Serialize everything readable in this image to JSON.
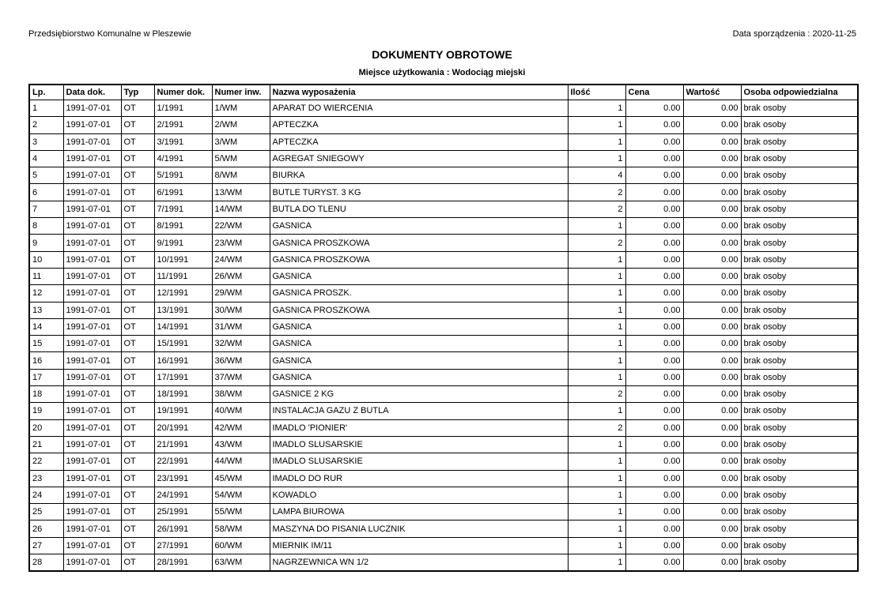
{
  "header": {
    "company": "Przedsiębiorstwo Komunalne w Pleszewie",
    "date": "Data sporządzenia : 2020-11-25",
    "title": "DOKUMENTY OBROTOWE",
    "subtitle": "Miejsce użytkowania : Wodociąg miejski"
  },
  "table": {
    "columns": [
      "Lp.",
      "Data dok.",
      "Typ",
      "Numer dok.",
      "Numer inw.",
      "Nazwa wyposażenia",
      "Ilość",
      "Cena",
      "Wartość",
      "Osoba odpowiedzialna"
    ],
    "rows": [
      [
        1,
        "1991-07-01",
        "OT",
        "1/1991",
        "1/WM",
        "APARAT DO WIERCENIA",
        1,
        "0.00",
        "0.00",
        "brak osoby"
      ],
      [
        2,
        "1991-07-01",
        "OT",
        "2/1991",
        "2/WM",
        "APTECZKA",
        1,
        "0.00",
        "0.00",
        "brak osoby"
      ],
      [
        3,
        "1991-07-01",
        "OT",
        "3/1991",
        "3/WM",
        "APTECZKA",
        1,
        "0.00",
        "0.00",
        "brak osoby"
      ],
      [
        4,
        "1991-07-01",
        "OT",
        "4/1991",
        "5/WM",
        "AGREGAT SNIEGOWY",
        1,
        "0.00",
        "0.00",
        "brak osoby"
      ],
      [
        5,
        "1991-07-01",
        "OT",
        "5/1991",
        "8/WM",
        "BIURKA",
        4,
        "0.00",
        "0.00",
        "brak osoby"
      ],
      [
        6,
        "1991-07-01",
        "OT",
        "6/1991",
        "13/WM",
        "BUTLE TURYST. 3 KG",
        2,
        "0.00",
        "0.00",
        "brak osoby"
      ],
      [
        7,
        "1991-07-01",
        "OT",
        "7/1991",
        "14/WM",
        "BUTLA DO TLENU",
        2,
        "0.00",
        "0.00",
        "brak osoby"
      ],
      [
        8,
        "1991-07-01",
        "OT",
        "8/1991",
        "22/WM",
        "GASNICA",
        1,
        "0.00",
        "0.00",
        "brak osoby"
      ],
      [
        9,
        "1991-07-01",
        "OT",
        "9/1991",
        "23/WM",
        "GASNICA PROSZKOWA",
        2,
        "0.00",
        "0.00",
        "brak osoby"
      ],
      [
        10,
        "1991-07-01",
        "OT",
        "10/1991",
        "24/WM",
        "GASNICA PROSZKOWA",
        1,
        "0.00",
        "0.00",
        "brak osoby"
      ],
      [
        11,
        "1991-07-01",
        "OT",
        "11/1991",
        "26/WM",
        "GASNICA",
        1,
        "0.00",
        "0.00",
        "brak osoby"
      ],
      [
        12,
        "1991-07-01",
        "OT",
        "12/1991",
        "29/WM",
        "GASNICA PROSZK.",
        1,
        "0.00",
        "0.00",
        "brak osoby"
      ],
      [
        13,
        "1991-07-01",
        "OT",
        "13/1991",
        "30/WM",
        "GASNICA PROSZKOWA",
        1,
        "0.00",
        "0.00",
        "brak osoby"
      ],
      [
        14,
        "1991-07-01",
        "OT",
        "14/1991",
        "31/WM",
        "GASNICA",
        1,
        "0.00",
        "0.00",
        "brak osoby"
      ],
      [
        15,
        "1991-07-01",
        "OT",
        "15/1991",
        "32/WM",
        "GASNICA",
        1,
        "0.00",
        "0.00",
        "brak osoby"
      ],
      [
        16,
        "1991-07-01",
        "OT",
        "16/1991",
        "36/WM",
        "GASNICA",
        1,
        "0.00",
        "0.00",
        "brak osoby"
      ],
      [
        17,
        "1991-07-01",
        "OT",
        "17/1991",
        "37/WM",
        "GASNICA",
        1,
        "0.00",
        "0.00",
        "brak osoby"
      ],
      [
        18,
        "1991-07-01",
        "OT",
        "18/1991",
        "38/WM",
        "GASNICE 2 KG",
        2,
        "0.00",
        "0.00",
        "brak osoby"
      ],
      [
        19,
        "1991-07-01",
        "OT",
        "19/1991",
        "40/WM",
        "INSTALACJA GAZU Z BUTLA",
        1,
        "0.00",
        "0.00",
        "brak osoby"
      ],
      [
        20,
        "1991-07-01",
        "OT",
        "20/1991",
        "42/WM",
        "IMADLO 'PIONIER'",
        2,
        "0.00",
        "0.00",
        "brak osoby"
      ],
      [
        21,
        "1991-07-01",
        "OT",
        "21/1991",
        "43/WM",
        "IMADLO SLUSARSKIE",
        1,
        "0.00",
        "0.00",
        "brak osoby"
      ],
      [
        22,
        "1991-07-01",
        "OT",
        "22/1991",
        "44/WM",
        "IMADLO SLUSARSKIE",
        1,
        "0.00",
        "0.00",
        "brak osoby"
      ],
      [
        23,
        "1991-07-01",
        "OT",
        "23/1991",
        "45/WM",
        "IMADLO DO RUR",
        1,
        "0.00",
        "0.00",
        "brak osoby"
      ],
      [
        24,
        "1991-07-01",
        "OT",
        "24/1991",
        "54/WM",
        "KOWADLO",
        1,
        "0.00",
        "0.00",
        "brak osoby"
      ],
      [
        25,
        "1991-07-01",
        "OT",
        "25/1991",
        "55/WM",
        "LAMPA BIUROWA",
        1,
        "0.00",
        "0.00",
        "brak osoby"
      ],
      [
        26,
        "1991-07-01",
        "OT",
        "26/1991",
        "58/WM",
        "MASZYNA DO PISANIA LUCZNIK",
        1,
        "0.00",
        "0.00",
        "brak osoby"
      ],
      [
        27,
        "1991-07-01",
        "OT",
        "27/1991",
        "60/WM",
        "MIERNIK IM/11",
        1,
        "0.00",
        "0.00",
        "brak osoby"
      ],
      [
        28,
        "1991-07-01",
        "OT",
        "28/1991",
        "63/WM",
        "NAGRZEWNICA WN 1/2",
        1,
        "0.00",
        "0.00",
        "brak osoby"
      ]
    ]
  }
}
